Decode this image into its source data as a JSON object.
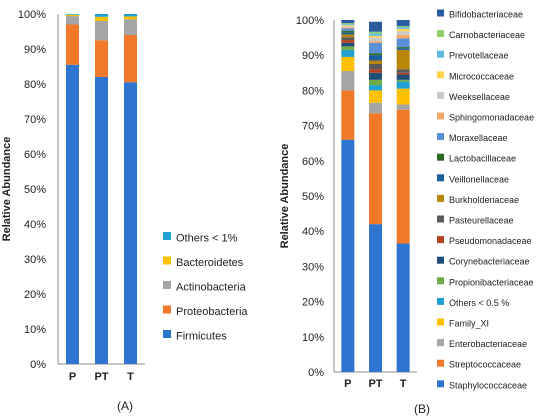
{
  "panels": {
    "A": {
      "label": "(A)"
    },
    "B": {
      "label": "(B)"
    }
  },
  "chart_data": [
    {
      "panel": "A",
      "type": "bar",
      "stacked": true,
      "percent": true,
      "categories": [
        "P",
        "PT",
        "T"
      ],
      "ylabel": "Relative Abundance",
      "xlabel": "",
      "ylim": [
        0,
        100
      ],
      "yticks": [
        "0%",
        "10%",
        "20%",
        "30%",
        "40%",
        "50%",
        "60%",
        "70%",
        "80%",
        "90%",
        "100%"
      ],
      "legend_position": "right",
      "series": [
        {
          "name": "Firmicutes",
          "color": "#2e75d2",
          "values": [
            85.5,
            82.0,
            80.5
          ]
        },
        {
          "name": "Proteobacteria",
          "color": "#f07a2a",
          "values": [
            11.5,
            10.5,
            13.5
          ]
        },
        {
          "name": "Actinobacteria",
          "color": "#a5a5a5",
          "values": [
            2.4,
            5.5,
            4.5
          ]
        },
        {
          "name": "Bacteroidetes",
          "color": "#ffc000",
          "values": [
            0.4,
            1.2,
            0.8
          ]
        },
        {
          "name": "Others < 1%",
          "color": "#21a0d2",
          "values": [
            0.2,
            0.8,
            0.7
          ]
        }
      ]
    },
    {
      "panel": "B",
      "type": "bar",
      "stacked": true,
      "percent": true,
      "categories": [
        "P",
        "PT",
        "T"
      ],
      "ylabel": "Relative Abundance",
      "xlabel": "",
      "ylim": [
        0,
        100
      ],
      "yticks": [
        "0%",
        "10%",
        "20%",
        "30%",
        "40%",
        "50%",
        "60%",
        "70%",
        "80%",
        "90%",
        "100%"
      ],
      "legend_position": "right",
      "series": [
        {
          "name": "Staphylococcaceae",
          "color": "#2e75d2",
          "values": [
            66.0,
            42.0,
            36.5
          ]
        },
        {
          "name": "Streptococcaceae",
          "color": "#f07a2a",
          "values": [
            14.0,
            31.5,
            38.0
          ]
        },
        {
          "name": "Enterobacteriaceae",
          "color": "#a5a5a5",
          "values": [
            5.5,
            3.0,
            1.5
          ]
        },
        {
          "name": "Family_XI",
          "color": "#ffc000",
          "values": [
            4.0,
            3.5,
            4.5
          ]
        },
        {
          "name": "Others < 0.5 %",
          "color": "#21a0d2",
          "values": [
            2.0,
            1.5,
            2.0
          ]
        },
        {
          "name": "Propionibacteriaceae",
          "color": "#70ad47",
          "values": [
            1.0,
            1.5,
            0.5
          ]
        },
        {
          "name": "Corynebacteriaceae",
          "color": "#1f4e79",
          "values": [
            1.0,
            2.0,
            1.5
          ]
        },
        {
          "name": "Pseudomonadaceae",
          "color": "#b5421f",
          "values": [
            0.8,
            1.0,
            0.5
          ]
        },
        {
          "name": "Pasteurellaceae",
          "color": "#595959",
          "values": [
            0.8,
            1.5,
            1.0
          ]
        },
        {
          "name": "Burkholderiaceae",
          "color": "#b8860b",
          "values": [
            0.8,
            1.0,
            5.5
          ]
        },
        {
          "name": "Veillonellaceae",
          "color": "#1a5f9e",
          "values": [
            0.5,
            1.5,
            0.5
          ]
        },
        {
          "name": "Lactobacillaceae",
          "color": "#2e6b1e",
          "values": [
            0.5,
            0.5,
            0.3
          ]
        },
        {
          "name": "Moraxellaceae",
          "color": "#5b8fd6",
          "values": [
            0.7,
            3.0,
            2.5
          ]
        },
        {
          "name": "Sphingomonadaceae",
          "color": "#f4a76a",
          "values": [
            0.3,
            0.5,
            1.0
          ]
        },
        {
          "name": "Weeksellaceae",
          "color": "#c9c9c9",
          "values": [
            0.3,
            1.0,
            1.0
          ]
        },
        {
          "name": "Micrococcaceae",
          "color": "#ffd34d",
          "values": [
            0.3,
            0.5,
            0.7
          ]
        },
        {
          "name": "Prevotellaceae",
          "color": "#5fb8e0",
          "values": [
            0.3,
            0.7,
            0.5
          ]
        },
        {
          "name": "Carnobacteriaceae",
          "color": "#8fce6a",
          "values": [
            0.3,
            0.5,
            0.3
          ]
        },
        {
          "name": "Bifidobacteriaceae",
          "color": "#2a5aa0",
          "values": [
            0.9,
            2.8,
            1.7
          ]
        }
      ]
    }
  ]
}
